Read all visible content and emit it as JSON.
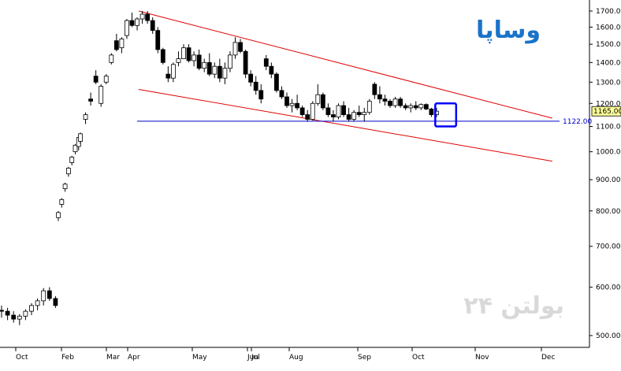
{
  "chart_data": {
    "type": "candlestick",
    "symbol": "وساپا",
    "watermark": "بولتن ۲۴",
    "yscale": "log",
    "ylim": [
      470,
      1780
    ],
    "x_ticks": [
      "Oct",
      "Feb",
      "Mar",
      "Apr",
      "May",
      "Jun",
      "Jul",
      "Aug",
      "Sep",
      "Oct",
      "Nov",
      "Dec"
    ],
    "y_ticks": [
      500,
      600,
      700,
      800,
      900,
      1000,
      1100,
      1200,
      1300,
      1400,
      1500,
      1600,
      1700
    ],
    "last_price": "1165.00",
    "support_level": {
      "value": 1122,
      "label": "1122.00"
    },
    "channel": {
      "upper": [
        [
          1,
          1700
        ],
        [
          100,
          1135
        ]
      ],
      "lower": [
        [
          1,
          1265
        ],
        [
          100,
          965
        ]
      ]
    },
    "focus_box": {
      "from": 72,
      "to": 77,
      "low": 1100,
      "high": 1200
    },
    "colors": {
      "up_candle": "#ffffff",
      "down_candle": "#000000",
      "channel": "#e00000",
      "support": "#0000cc",
      "focus_box": "#0000ff",
      "title": "#1a73c9",
      "watermark": "#d9d9d9",
      "last_price_tag": "#ffff99"
    },
    "candles": [
      [
        550,
        560,
        535,
        548
      ],
      [
        548,
        555,
        530,
        540
      ],
      [
        540,
        548,
        525,
        532
      ],
      [
        532,
        542,
        520,
        538
      ],
      [
        538,
        552,
        530,
        548
      ],
      [
        548,
        565,
        540,
        560
      ],
      [
        560,
        575,
        550,
        570
      ],
      [
        570,
        598,
        560,
        592
      ],
      [
        592,
        600,
        570,
        575
      ],
      [
        575,
        580,
        555,
        560
      ],
      [
        780,
        800,
        770,
        795
      ],
      [
        820,
        840,
        810,
        835
      ],
      [
        870,
        890,
        860,
        885
      ],
      [
        920,
        945,
        910,
        940
      ],
      [
        960,
        985,
        950,
        980
      ],
      [
        1000,
        1030,
        990,
        1025
      ],
      [
        1020,
        1060,
        1005,
        1055
      ],
      [
        1040,
        1075,
        1030,
        1070
      ],
      [
        1130,
        1160,
        1110,
        1150
      ],
      [
        1220,
        1250,
        1190,
        1210
      ],
      [
        1330,
        1360,
        1290,
        1300
      ],
      [
        1200,
        1290,
        1185,
        1280
      ],
      [
        1300,
        1340,
        1290,
        1330
      ],
      [
        1400,
        1450,
        1390,
        1440
      ],
      [
        1520,
        1560,
        1460,
        1470
      ],
      [
        1480,
        1540,
        1450,
        1530
      ],
      [
        1550,
        1650,
        1530,
        1640
      ],
      [
        1640,
        1690,
        1600,
        1610
      ],
      [
        1610,
        1660,
        1580,
        1650
      ],
      [
        1650,
        1700,
        1620,
        1680
      ],
      [
        1680,
        1700,
        1620,
        1640
      ],
      [
        1640,
        1660,
        1560,
        1580
      ],
      [
        1580,
        1600,
        1450,
        1470
      ],
      [
        1470,
        1480,
        1390,
        1400
      ],
      [
        1340,
        1380,
        1300,
        1320
      ],
      [
        1320,
        1400,
        1300,
        1390
      ],
      [
        1400,
        1460,
        1380,
        1420
      ],
      [
        1420,
        1500,
        1420,
        1480
      ],
      [
        1480,
        1500,
        1400,
        1410
      ],
      [
        1410,
        1460,
        1380,
        1440
      ],
      [
        1440,
        1470,
        1360,
        1370
      ],
      [
        1370,
        1420,
        1350,
        1400
      ],
      [
        1400,
        1450,
        1330,
        1340
      ],
      [
        1340,
        1400,
        1320,
        1380
      ],
      [
        1380,
        1420,
        1300,
        1320
      ],
      [
        1320,
        1400,
        1290,
        1370
      ],
      [
        1370,
        1460,
        1350,
        1440
      ],
      [
        1440,
        1540,
        1420,
        1510
      ],
      [
        1510,
        1530,
        1450,
        1460
      ],
      [
        1460,
        1470,
        1320,
        1340
      ],
      [
        1340,
        1360,
        1280,
        1300
      ],
      [
        1300,
        1330,
        1240,
        1260
      ],
      [
        1260,
        1290,
        1200,
        1220
      ],
      [
        1420,
        1440,
        1360,
        1380
      ],
      [
        1380,
        1400,
        1320,
        1340
      ],
      [
        1340,
        1350,
        1250,
        1260
      ],
      [
        1260,
        1280,
        1220,
        1230
      ],
      [
        1230,
        1250,
        1180,
        1190
      ],
      [
        1190,
        1220,
        1160,
        1200
      ],
      [
        1200,
        1240,
        1170,
        1180
      ],
      [
        1180,
        1190,
        1140,
        1150
      ],
      [
        1150,
        1170,
        1120,
        1130
      ],
      [
        1130,
        1210,
        1125,
        1200
      ],
      [
        1200,
        1290,
        1190,
        1240
      ],
      [
        1240,
        1250,
        1170,
        1180
      ],
      [
        1180,
        1200,
        1140,
        1150
      ],
      [
        1150,
        1170,
        1120,
        1140
      ],
      [
        1140,
        1200,
        1130,
        1190
      ],
      [
        1190,
        1210,
        1140,
        1150
      ],
      [
        1150,
        1180,
        1120,
        1130
      ],
      [
        1130,
        1170,
        1120,
        1160
      ],
      [
        1160,
        1190,
        1140,
        1150
      ],
      [
        1150,
        1180,
        1120,
        1160
      ],
      [
        1160,
        1220,
        1150,
        1210
      ],
      [
        1290,
        1300,
        1220,
        1240
      ],
      [
        1240,
        1280,
        1200,
        1220
      ],
      [
        1220,
        1240,
        1190,
        1210
      ],
      [
        1210,
        1220,
        1180,
        1190
      ],
      [
        1190,
        1230,
        1180,
        1220
      ],
      [
        1220,
        1230,
        1180,
        1190
      ],
      [
        1190,
        1200,
        1170,
        1180
      ],
      [
        1180,
        1200,
        1160,
        1190
      ],
      [
        1190,
        1210,
        1170,
        1180
      ],
      [
        1180,
        1200,
        1170,
        1195
      ],
      [
        1195,
        1200,
        1170,
        1175
      ],
      [
        1175,
        1180,
        1140,
        1150
      ],
      [
        1150,
        1180,
        1140,
        1165
      ]
    ]
  }
}
